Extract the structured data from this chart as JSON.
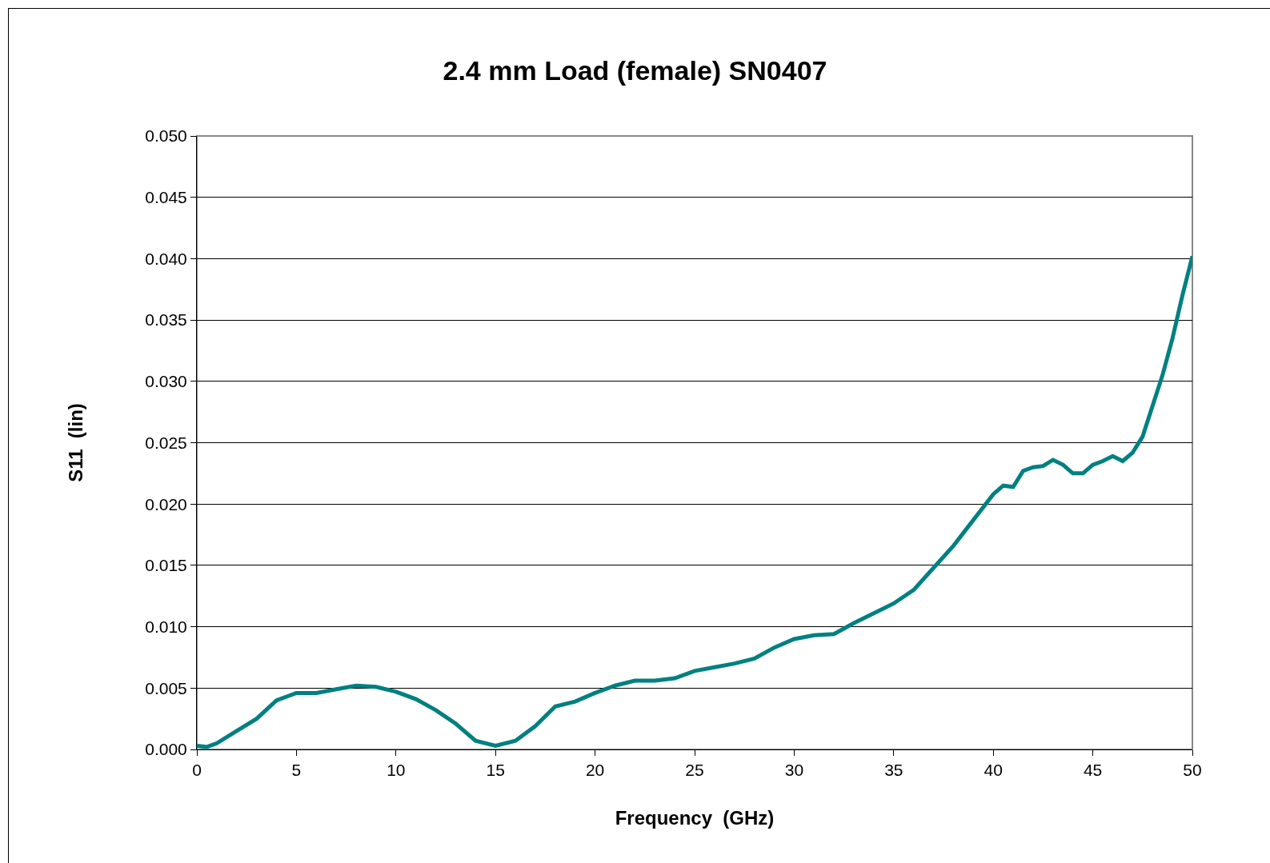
{
  "chart_data": {
    "type": "line",
    "title": "2.4 mm Load (female) SN0407",
    "xlabel": "Frequency  (GHz)",
    "ylabel": "S11  (lin)",
    "series": [
      {
        "color": "#008080",
        "x": [
          0,
          0.5,
          1,
          2,
          3,
          4,
          5,
          6,
          7,
          8,
          9,
          10,
          11,
          12,
          13,
          14,
          15,
          16,
          17,
          18,
          19,
          20,
          21,
          22,
          23,
          24,
          25,
          26,
          27,
          28,
          29,
          30,
          31,
          32,
          33,
          34,
          35,
          36,
          37,
          38,
          39,
          40,
          40.5,
          41,
          41.5,
          42,
          42.5,
          43,
          43.5,
          44,
          44.5,
          45,
          45.5,
          46,
          46.5,
          47,
          47.5,
          48,
          48.5,
          49,
          49.5,
          50
        ],
        "values": [
          0.0003,
          0.0002,
          0.0005,
          0.0015,
          0.0025,
          0.004,
          0.0046,
          0.0046,
          0.0049,
          0.0052,
          0.0051,
          0.0047,
          0.0041,
          0.0032,
          0.0021,
          0.0007,
          0.0003,
          0.0007,
          0.0019,
          0.0035,
          0.0039,
          0.0046,
          0.0052,
          0.0056,
          0.0056,
          0.0058,
          0.0064,
          0.0067,
          0.007,
          0.0074,
          0.0083,
          0.009,
          0.0093,
          0.0094,
          0.0103,
          0.0111,
          0.0119,
          0.013,
          0.0148,
          0.0166,
          0.0187,
          0.0208,
          0.0215,
          0.0214,
          0.0227,
          0.023,
          0.0231,
          0.0236,
          0.0232,
          0.0225,
          0.0225,
          0.0232,
          0.0235,
          0.0239,
          0.0235,
          0.0242,
          0.0255,
          0.028,
          0.0305,
          0.0335,
          0.037,
          0.0402
        ]
      }
    ],
    "xlim": [
      0,
      50
    ],
    "xticks": [
      0,
      5,
      10,
      15,
      20,
      25,
      30,
      35,
      40,
      45,
      50
    ],
    "ylim": [
      0,
      0.05
    ],
    "yticks": [
      {
        "value": 0,
        "label": "0.000"
      },
      {
        "value": 0.005,
        "label": "0.005"
      },
      {
        "value": 0.01,
        "label": "0.010"
      },
      {
        "value": 0.015,
        "label": "0.015"
      },
      {
        "value": 0.02,
        "label": "0.020"
      },
      {
        "value": 0.025,
        "label": "0.025"
      },
      {
        "value": 0.03,
        "label": "0.030"
      },
      {
        "value": 0.035,
        "label": "0.035"
      },
      {
        "value": 0.04,
        "label": "0.040"
      },
      {
        "value": 0.045,
        "label": "0.045"
      },
      {
        "value": 0.05,
        "label": "0.050"
      }
    ],
    "grid": "y",
    "marker": "none",
    "line_style": "solid"
  }
}
